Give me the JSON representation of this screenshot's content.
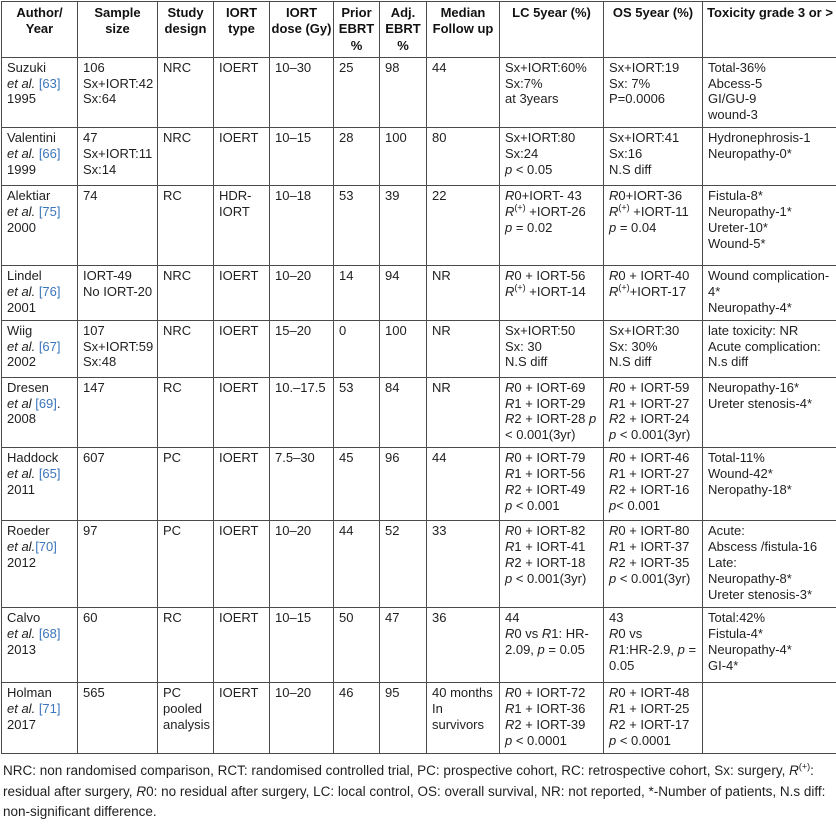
{
  "colors": {
    "citation_link": "#3b76bc"
  },
  "table": {
    "columns": [
      "Author/\nYear",
      "Sample\nsize",
      "Study\ndesign",
      "IORT\ntype",
      "IORT\ndose (Gy)",
      "Prior\nEBRT\n%",
      "Adj.\nEBRT\n%",
      "Median\nFollow up",
      "LC 5year (%)",
      "OS 5year (%)",
      "Toxicity grade 3 or >"
    ],
    "rows": [
      {
        "author": [
          "Suzuki",
          "et al. [63]",
          "1995"
        ],
        "sample": [
          "106",
          "Sx+IORT:42",
          "Sx:64"
        ],
        "design": [
          "NRC"
        ],
        "type": [
          "IOERT"
        ],
        "dose": [
          "10–30"
        ],
        "prior": [
          "25"
        ],
        "adj": [
          "98"
        ],
        "followup": [
          "44"
        ],
        "lc": [
          "Sx+IORT:60%",
          "Sx:7%",
          "at 3years"
        ],
        "os": [
          "Sx+IORT:19",
          "Sx: 7%",
          "P=0.0006"
        ],
        "toxicity": [
          "Total-36%",
          "Abcess-5",
          "GI/GU-9",
          "wound-3"
        ]
      },
      {
        "author": [
          "Valentini",
          "et al. [66]",
          "1999"
        ],
        "sample": [
          "47",
          "Sx+IORT:11",
          "Sx:14"
        ],
        "design": [
          "NRC"
        ],
        "type": [
          "IOERT"
        ],
        "dose": [
          "10–15"
        ],
        "prior": [
          "28"
        ],
        "adj": [
          "100"
        ],
        "followup": [
          "80"
        ],
        "lc": [
          "Sx+IORT:80",
          "Sx:24",
          "p < 0.05"
        ],
        "os": [
          "Sx+IORT:41",
          "Sx:16",
          "N.S diff"
        ],
        "toxicity": [
          "Hydronephrosis-1",
          "Neuropathy-0*"
        ]
      },
      {
        "author": [
          "Alektiar",
          "et al. [75]",
          "2000"
        ],
        "sample": [
          "74"
        ],
        "design": [
          "RC"
        ],
        "type": [
          "HDR-",
          "IORT"
        ],
        "dose": [
          "10–18"
        ],
        "prior": [
          "53"
        ],
        "adj": [
          "39"
        ],
        "followup": [
          "22"
        ],
        "lc": [
          "R0+IORT- 43",
          "R(+) +IORT-26",
          "p = 0.02"
        ],
        "os": [
          "R0+IORT-36",
          "R(+) +IORT-11",
          "p = 0.04"
        ],
        "toxicity": [
          "Fistula-8*",
          "Neuropathy-1*",
          "Ureter-10*",
          "Wound-5*"
        ]
      },
      {
        "author": [
          "Lindel",
          "et al. [76]",
          "2001"
        ],
        "sample": [
          "IORT-49",
          "No IORT-20"
        ],
        "design": [
          "NRC"
        ],
        "type": [
          "IOERT"
        ],
        "dose": [
          "10–20"
        ],
        "prior": [
          "14"
        ],
        "adj": [
          "94"
        ],
        "followup": [
          "NR"
        ],
        "lc": [
          "R0 + IORT-56",
          "R(+) +IORT-14"
        ],
        "os": [
          "R0 + IORT-40",
          "R(+)+IORT-17"
        ],
        "toxicity": [
          "Wound complication-4*",
          "Neuropathy-4*"
        ]
      },
      {
        "author": [
          "Wiig",
          "et al. [67]",
          "2002"
        ],
        "sample": [
          "107",
          "Sx+IORT:59",
          "Sx:48"
        ],
        "design": [
          "NRC"
        ],
        "type": [
          "IOERT"
        ],
        "dose": [
          "15–20"
        ],
        "prior": [
          "0"
        ],
        "adj": [
          "100"
        ],
        "followup": [
          "NR"
        ],
        "lc": [
          "Sx+IORT:50",
          "Sx: 30",
          "N.S diff"
        ],
        "os": [
          "Sx+IORT:30",
          "Sx: 30%",
          "N.S diff"
        ],
        "toxicity": [
          "late toxicity: NR",
          "Acute complication:",
          "N.s diff"
        ]
      },
      {
        "author": [
          "Dresen",
          "et al [69].",
          "2008"
        ],
        "sample": [
          "147"
        ],
        "design": [
          "RC"
        ],
        "type": [
          "IOERT"
        ],
        "dose": [
          "10.–17.5"
        ],
        "prior": [
          "53"
        ],
        "adj": [
          "84"
        ],
        "followup": [
          "NR"
        ],
        "lc": [
          "R0 + IORT-69",
          "R1 + IORT-29",
          "R2 + IORT-28 p",
          "< 0.001(3yr)"
        ],
        "os": [
          "R0 + IORT-59",
          "R1 + IORT-27",
          "R2 + IORT-24",
          "p < 0.001(3yr)"
        ],
        "toxicity": [
          "Neuropathy-16*",
          "Ureter stenosis-4*"
        ]
      },
      {
        "author": [
          "Haddock",
          "et al. [65]",
          "2011"
        ],
        "sample": [
          "607"
        ],
        "design": [
          "PC"
        ],
        "type": [
          "IOERT"
        ],
        "dose": [
          "7.5–30"
        ],
        "prior": [
          "45"
        ],
        "adj": [
          "96"
        ],
        "followup": [
          "44"
        ],
        "lc": [
          "R0 + IORT-79",
          "R1 + IORT-56",
          "R2 + IORT-49",
          "p < 0.001"
        ],
        "os": [
          "R0 + IORT-46",
          "R1 + IORT-27",
          "R2 + IORT-16",
          "p< 0.001"
        ],
        "toxicity": [
          "Total-11%",
          "Wound-42*",
          "Neropathy-18*"
        ]
      },
      {
        "author": [
          "Roeder",
          "et al.[70]",
          "2012"
        ],
        "sample": [
          "97"
        ],
        "design": [
          "PC"
        ],
        "type": [
          "IOERT"
        ],
        "dose": [
          "10–20"
        ],
        "prior": [
          "44"
        ],
        "adj": [
          "52"
        ],
        "followup": [
          "33"
        ],
        "lc": [
          "R0 + IORT-82",
          "R1 + IORT-41",
          "R2 + IORT-18",
          "p < 0.001(3yr)"
        ],
        "os": [
          "R0 + IORT-80",
          "R1 + IORT-37",
          "R2 + IORT-35",
          "p < 0.001(3yr)"
        ],
        "toxicity": [
          "Acute:",
          "Abscess /fistula-16",
          "Late:",
          "Neuropathy-8*",
          "Ureter stenosis-3*"
        ]
      },
      {
        "author": [
          "Calvo",
          "et al. [68]",
          "2013"
        ],
        "sample": [
          "60"
        ],
        "design": [
          "RC"
        ],
        "type": [
          "IOERT"
        ],
        "dose": [
          "10–15"
        ],
        "prior": [
          "50"
        ],
        "adj": [
          "47"
        ],
        "followup": [
          "36"
        ],
        "lc": [
          "44",
          "R0 vs R1: HR-",
          "2.09, p = 0.05"
        ],
        "os": [
          "43",
          "R0 vs",
          "R1:HR-2.9, p =",
          "0.05"
        ],
        "toxicity": [
          "Total:42%",
          "Fistula-4*",
          "Neuropathy-4*",
          "GI-4*"
        ]
      },
      {
        "author": [
          "Holman",
          "et al. [71]",
          "2017"
        ],
        "sample": [
          "565"
        ],
        "design": [
          "PC",
          "pooled",
          "analysis"
        ],
        "type": [
          "IOERT"
        ],
        "dose": [
          "10–20"
        ],
        "prior": [
          "46"
        ],
        "adj": [
          "95"
        ],
        "followup": [
          "40 months",
          "In survivors"
        ],
        "lc": [
          "R0 + IORT-72",
          "R1 + IORT-36",
          "R2 + IORT-39",
          "p < 0.0001"
        ],
        "os": [
          "R0 + IORT-48",
          "R1 + IORT-25",
          "R2 + IORT-17",
          "p < 0.0001"
        ],
        "toxicity": []
      }
    ]
  },
  "footnote": "NRC: non randomised comparison, RCT: randomised controlled trial, PC: prospective cohort, RC: retrospective cohort, Sx: surgery, R(+): residual after surgery, R0: no residual after surgery, LC: local control, OS: overall survival, NR: not reported, *-Number of patients, N.s diff: non-significant difference."
}
